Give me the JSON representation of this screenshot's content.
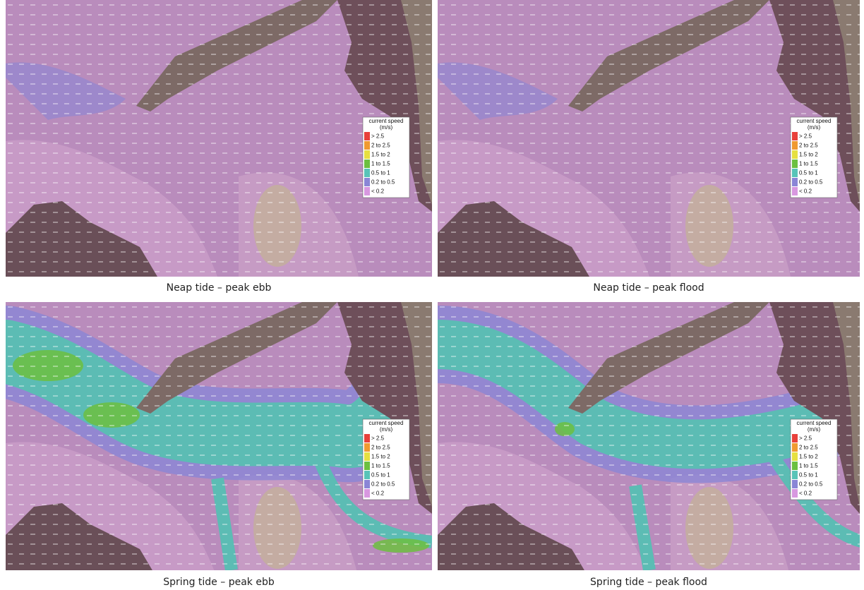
{
  "panels": [
    {
      "caption": "Neap tide – peak ebb",
      "legend": {
        "title": "current speed",
        "unit": "(m/s)",
        "entries": [
          {
            "label": "> 2.5",
            "color": "#e8403a"
          },
          {
            "label": "2 to 2.5",
            "color": "#f09a30"
          },
          {
            "label": "1.5 to 2",
            "color": "#e6e040"
          },
          {
            "label": "1 to 1.5",
            "color": "#6cc040"
          },
          {
            "label": "0.5 to 1",
            "color": "#58c4b8"
          },
          {
            "label": "0.2 to 0.5",
            "color": "#8a86d6"
          },
          {
            "label": "< 0.2",
            "color": "#d898e0"
          }
        ]
      }
    },
    {
      "caption": "Neap tide – peak flood",
      "legend": {
        "title": "current speed",
        "unit": "(m/s)",
        "entries": [
          {
            "label": "> 2.5",
            "color": "#e8403a"
          },
          {
            "label": "2 to 2.5",
            "color": "#f09a30"
          },
          {
            "label": "1.5 to 2",
            "color": "#e6e040"
          },
          {
            "label": "1 to 1.5",
            "color": "#6cc040"
          },
          {
            "label": "0.5 to 1",
            "color": "#58c4b8"
          },
          {
            "label": "0.2 to 0.5",
            "color": "#8a86d6"
          },
          {
            "label": "< 0.2",
            "color": "#d898e0"
          }
        ]
      }
    },
    {
      "caption": "Spring tide – peak ebb",
      "legend": {
        "title": "current speed",
        "unit": "(m/s)",
        "entries": [
          {
            "label": "> 2.5",
            "color": "#e8403a"
          },
          {
            "label": "2 to 2.5",
            "color": "#f09a30"
          },
          {
            "label": "1.5 to 2",
            "color": "#e6e040"
          },
          {
            "label": "1 to 1.5",
            "color": "#6cc040"
          },
          {
            "label": "0.5 to 1",
            "color": "#58c4b8"
          },
          {
            "label": "0.2 to 0.5",
            "color": "#8a86d6"
          },
          {
            "label": "< 0.2",
            "color": "#d898e0"
          }
        ]
      }
    },
    {
      "caption": "Spring tide – peak flood",
      "legend": {
        "title": "current speed",
        "unit": "(m/s)",
        "entries": [
          {
            "label": "> 2.5",
            "color": "#e8403a"
          },
          {
            "label": "2 to 2.5",
            "color": "#f09a30"
          },
          {
            "label": "1.5 to 2",
            "color": "#e6e040"
          },
          {
            "label": "1 to 1.5",
            "color": "#6cc040"
          },
          {
            "label": "0.5 to 1",
            "color": "#58c4b8"
          },
          {
            "label": "0.2 to 0.5",
            "color": "#8a86d6"
          },
          {
            "label": "< 0.2",
            "color": "#d898e0"
          }
        ]
      }
    }
  ]
}
